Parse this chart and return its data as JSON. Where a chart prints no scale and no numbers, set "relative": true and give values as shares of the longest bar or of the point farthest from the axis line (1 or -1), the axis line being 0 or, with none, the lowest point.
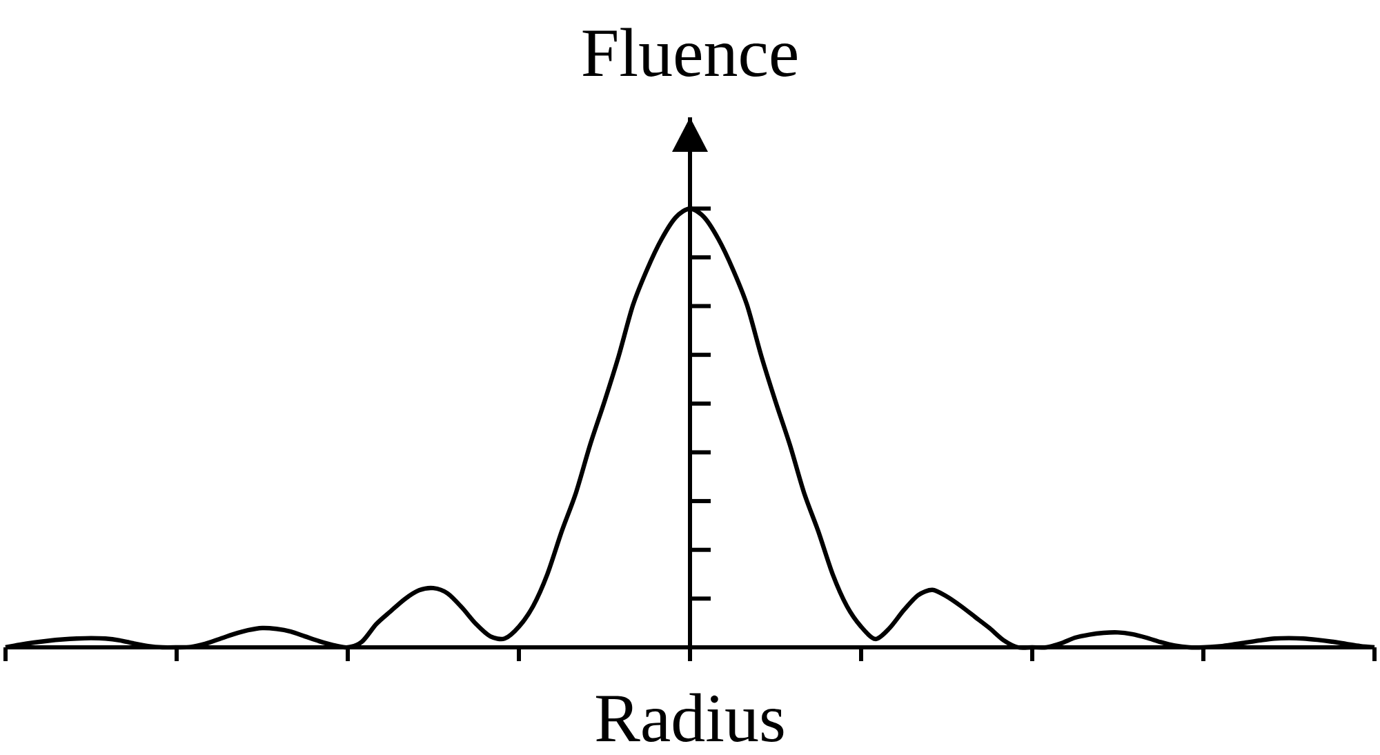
{
  "chart_data": {
    "type": "line",
    "xlabel": "Radius",
    "ylabel": "Fluence",
    "relative": true,
    "categories": [
      null,
      null,
      null,
      null,
      null,
      null,
      null,
      null,
      null,
      null,
      null,
      null,
      null,
      null,
      null,
      null,
      null,
      null,
      null,
      null,
      null,
      null,
      null,
      null,
      null,
      null,
      null,
      null,
      null,
      null,
      null,
      null,
      null,
      null,
      null,
      null,
      null,
      null,
      null,
      null,
      null,
      null,
      null,
      null,
      null,
      null,
      null,
      null,
      null,
      null,
      null,
      null,
      null,
      null,
      null,
      null,
      null,
      null,
      null,
      null,
      null,
      null,
      null,
      null,
      null,
      null,
      null,
      null,
      null,
      null,
      null,
      null,
      null,
      null,
      null,
      null,
      null,
      null,
      null,
      null,
      null,
      null,
      null,
      null,
      null,
      null,
      null,
      null,
      null,
      null,
      null,
      null,
      null,
      null,
      null,
      null,
      null
    ],
    "series": [
      {
        "color": "#000000",
        "values": [
          0.0,
          0.006,
          0.011,
          0.015,
          0.018,
          0.02,
          0.021,
          0.02,
          0.016,
          0.009,
          0.003,
          0.0,
          0.0,
          0.001,
          0.008,
          0.019,
          0.03,
          0.039,
          0.044,
          0.042,
          0.036,
          0.025,
          0.014,
          0.005,
          0.0,
          0.013,
          0.053,
          0.082,
          0.11,
          0.13,
          0.135,
          0.123,
          0.091,
          0.053,
          0.025,
          0.02,
          0.047,
          0.094,
          0.167,
          0.264,
          0.352,
          0.462,
          0.56,
          0.664,
          0.78,
          0.862,
          0.93,
          0.98,
          1.0,
          0.98,
          0.93,
          0.862,
          0.78,
          0.664,
          0.56,
          0.462,
          0.352,
          0.264,
          0.167,
          0.094,
          0.047,
          0.019,
          0.044,
          0.085,
          0.119,
          0.131,
          0.116,
          0.094,
          0.069,
          0.044,
          0.016,
          0.0,
          0.0,
          0.0,
          0.009,
          0.022,
          0.029,
          0.033,
          0.034,
          0.03,
          0.022,
          0.012,
          0.004,
          0.0,
          0.0,
          0.002,
          0.006,
          0.011,
          0.016,
          0.02,
          0.021,
          0.02,
          0.017,
          0.013,
          0.008,
          0.003,
          0.0
        ]
      }
    ]
  }
}
